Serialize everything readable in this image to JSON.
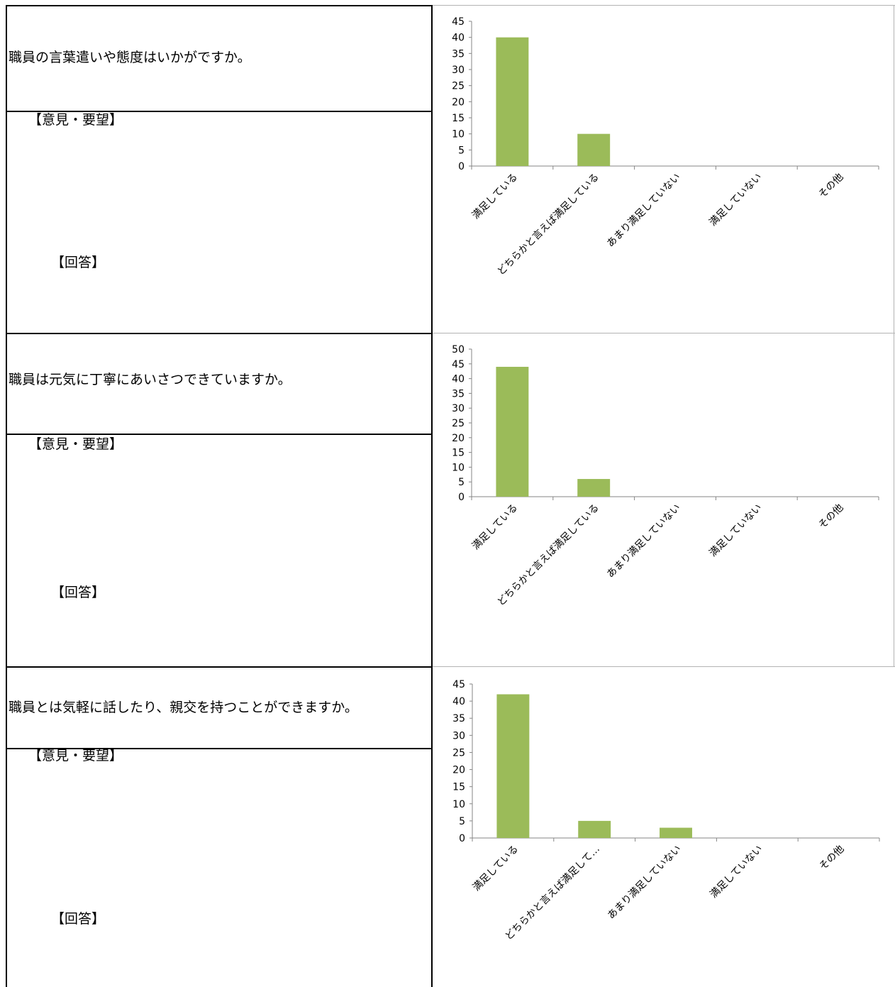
{
  "sections": [
    {
      "question": "職員の言葉遣いや態度はいかがですか。",
      "opinion_label": "【意見・要望】",
      "answer_label": "【回答】"
    },
    {
      "question": "職員は元気に丁寧にあいさつできていますか。",
      "opinion_label": "【意見・要望】",
      "answer_label": "【回答】"
    },
    {
      "question": "職員とは気軽に話したり、親交を持つことができますか。",
      "opinion_label": "【意見・要望】",
      "answer_label": "【回答】"
    }
  ],
  "chart_data": [
    {
      "type": "bar",
      "categories": [
        "満足している",
        "どちらかと言えば満足している",
        "あまり満足していない",
        "満足していない",
        "その他"
      ],
      "values": [
        40,
        10,
        0,
        0,
        0
      ],
      "ylim": [
        0,
        45
      ],
      "yticks": [
        "0",
        "5",
        "10",
        "15",
        "20",
        "25",
        "30",
        "35",
        "40",
        "45"
      ],
      "bar_color": "#9bbb59",
      "grid": false,
      "legend": "none"
    },
    {
      "type": "bar",
      "categories": [
        "満足している",
        "どちらかと言えば満足している",
        "あまり満足していない",
        "満足していない",
        "その他"
      ],
      "values": [
        44,
        6,
        0,
        0,
        0
      ],
      "ylim": [
        0,
        50
      ],
      "yticks": [
        "0",
        "5",
        "10",
        "15",
        "20",
        "25",
        "30",
        "35",
        "40",
        "45",
        "50"
      ],
      "bar_color": "#9bbb59",
      "grid": false,
      "legend": "none"
    },
    {
      "type": "bar",
      "categories": [
        "満足している",
        "どちらかと言えば満足して…",
        "あまり満足していない",
        "満足していない",
        "その他"
      ],
      "values": [
        42,
        5,
        3,
        0,
        0
      ],
      "ylim": [
        0,
        45
      ],
      "yticks": [
        "0",
        "5",
        "10",
        "15",
        "20",
        "25",
        "30",
        "35",
        "40",
        "45"
      ],
      "bar_color": "#9bbb59",
      "grid": false,
      "legend": "none"
    }
  ]
}
